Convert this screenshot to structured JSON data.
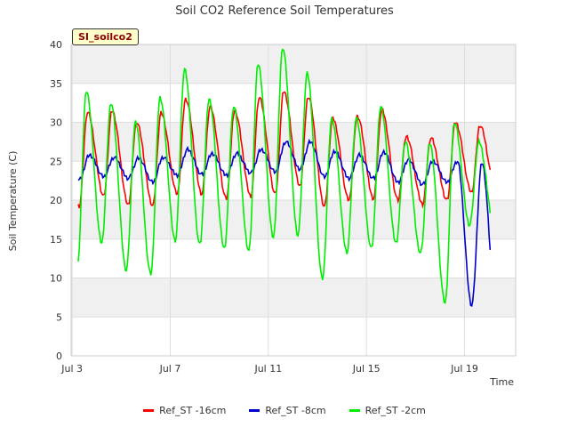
{
  "chart_data": {
    "type": "line",
    "title": "Soil CO2 Reference Soil Temperatures",
    "xlabel": "Time",
    "ylabel": "Soil Temperature (C)",
    "site_label": "SI_soilco2",
    "xlim": [
      "2023-07-02T23:00",
      "2023-07-21T02:00"
    ],
    "ylim": [
      0,
      40
    ],
    "yticks": [
      0,
      5,
      10,
      15,
      20,
      25,
      30,
      35,
      40
    ],
    "xticks": [
      {
        "date": "2023-07-03",
        "label": "Jul 3"
      },
      {
        "date": "2023-07-07",
        "label": "Jul 7"
      },
      {
        "date": "2023-07-11",
        "label": "Jul 11"
      },
      {
        "date": "2023-07-15",
        "label": "Jul 15"
      },
      {
        "date": "2023-07-19",
        "label": "Jul 19"
      }
    ],
    "grid": true,
    "legend_position": "bottom",
    "series": [
      {
        "name": "Ref_ST -16cm",
        "color": "#ff0000",
        "daily_max": [
          31.3,
          31.5,
          30.0,
          31.2,
          33.0,
          32.0,
          31.5,
          33.2,
          34.0,
          33.3,
          30.5,
          30.8,
          31.6,
          28.2,
          28.0,
          30.0,
          29.6
        ],
        "daily_min": [
          19.2,
          20.5,
          19.4,
          19.3,
          20.8,
          20.8,
          20.2,
          20.5,
          20.8,
          21.8,
          19.2,
          20.0,
          20.2,
          20.0,
          19.5,
          20.0,
          21.0
        ]
      },
      {
        "name": "Ref_ST -8cm",
        "color": "#0000cc",
        "daily_max": [
          25.8,
          25.5,
          25.4,
          25.5,
          26.5,
          26.0,
          26.0,
          26.5,
          27.5,
          27.5,
          26.3,
          25.8,
          26.2,
          25.2,
          25.0,
          25.0,
          24.8
        ],
        "daily_min": [
          22.6,
          23.0,
          22.8,
          22.3,
          23.2,
          23.3,
          23.2,
          23.5,
          23.6,
          24.0,
          23.0,
          22.8,
          22.8,
          22.3,
          22.0,
          22.3,
          6.5
        ]
      },
      {
        "name": "Ref_ST -2cm",
        "color": "#00ee00",
        "daily_max": [
          34.0,
          32.5,
          30.0,
          33.2,
          36.8,
          33.0,
          32.0,
          37.5,
          39.6,
          36.3,
          30.5,
          30.5,
          32.0,
          27.5,
          27.3,
          30.0,
          27.5
        ],
        "daily_min": [
          11.2,
          14.5,
          11.0,
          10.5,
          14.8,
          14.3,
          13.8,
          13.5,
          15.2,
          15.5,
          9.9,
          13.3,
          13.8,
          14.5,
          13.2,
          6.8,
          16.8
        ]
      }
    ]
  }
}
